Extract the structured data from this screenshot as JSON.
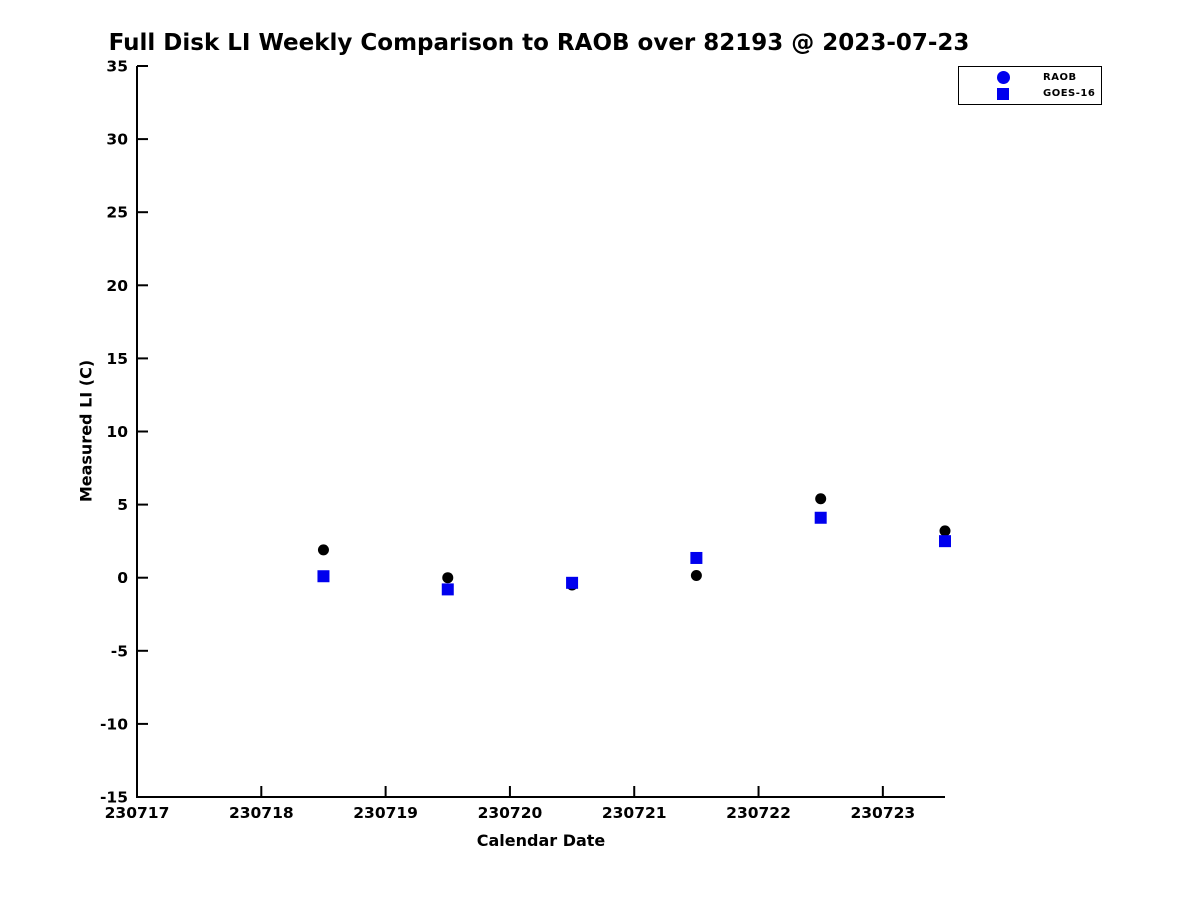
{
  "page": {
    "background": "#ffffff"
  },
  "chart_data": {
    "type": "scatter",
    "title": "Full Disk LI Weekly Comparison to RAOB over 82193 @ 2023-07-23",
    "xlabel": "Calendar Date",
    "ylabel": "Measured LI (C)",
    "xlim": [
      230717,
      230723.5
    ],
    "ylim": [
      -15,
      35
    ],
    "x_ticks": [
      230717,
      230718,
      230719,
      230720,
      230721,
      230722,
      230723
    ],
    "x_tick_labels": [
      "230717",
      "230718",
      "230719",
      "230720",
      "230721",
      "230722",
      "230723"
    ],
    "y_ticks": [
      -15,
      -10,
      -5,
      0,
      5,
      10,
      15,
      20,
      25,
      30,
      35
    ],
    "y_tick_labels": [
      "-15",
      "-10",
      "-5",
      "0",
      "5",
      "10",
      "15",
      "20",
      "25",
      "30",
      "35"
    ],
    "grid": false,
    "axis_color": "#000000",
    "series": [
      {
        "name": "RAOB",
        "marker": "circle",
        "color": "#000000",
        "x": [
          230718.5,
          230719.5,
          230720.5,
          230721.5,
          230722.5,
          230723.5
        ],
        "y": [
          1.9,
          0.0,
          -0.5,
          0.15,
          5.4,
          3.2
        ]
      },
      {
        "name": "GOES-16",
        "marker": "square",
        "color": "#0000ee",
        "x": [
          230718.5,
          230719.5,
          230720.5,
          230721.5,
          230722.5,
          230723.5
        ],
        "y": [
          0.1,
          -0.8,
          -0.35,
          1.35,
          4.1,
          2.5
        ]
      }
    ],
    "legend": {
      "position": "top-right",
      "marker_color": "#0000ee",
      "entries": [
        {
          "label": "RAOB",
          "marker": "circle"
        },
        {
          "label": "GOES-16",
          "marker": "square"
        }
      ]
    }
  }
}
